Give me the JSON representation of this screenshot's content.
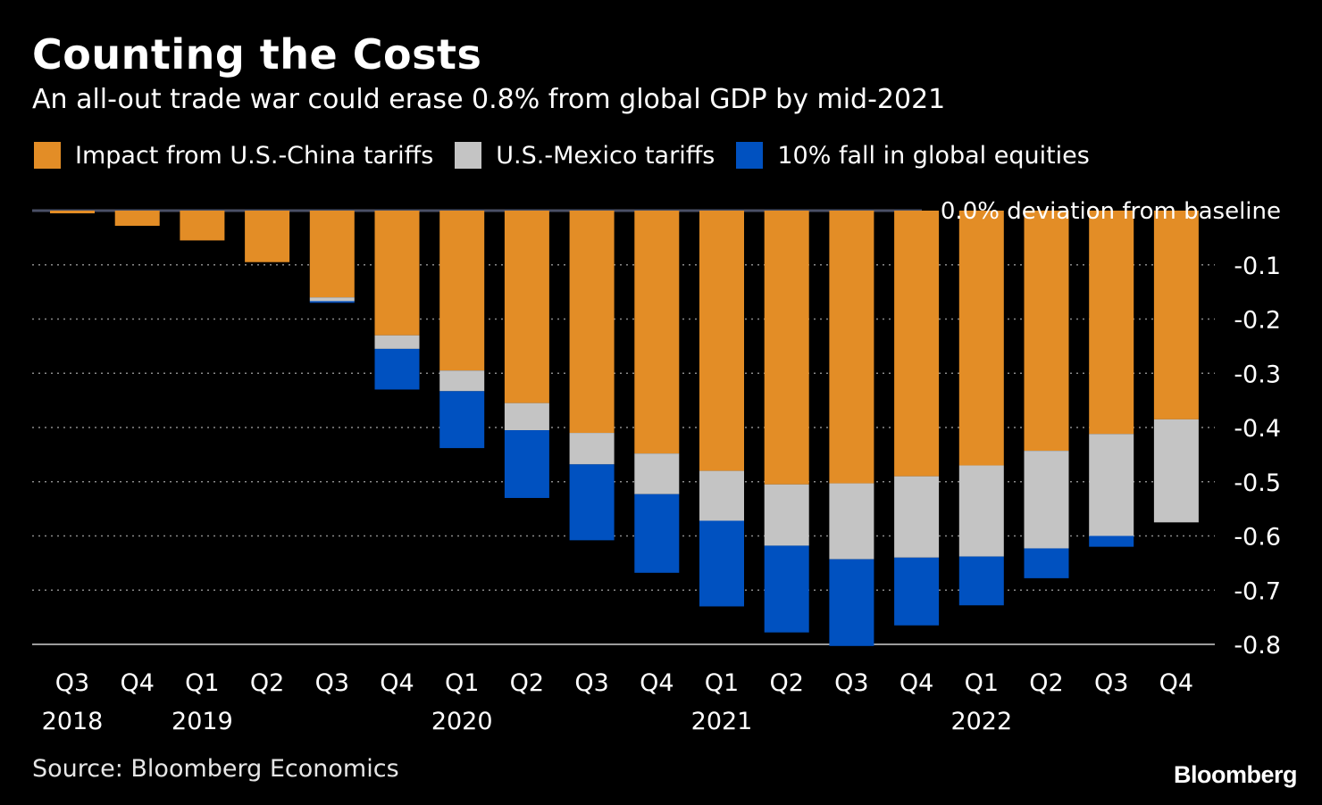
{
  "title": "Counting the Costs",
  "subtitle": "An all-out trade war could erase 0.8% from global GDP by mid-2021",
  "source": "Source: Bloomberg Economics",
  "logo": "Bloomberg",
  "colors": {
    "china": "#e38d26",
    "mexico": "#c4c4c4",
    "equities": "#0051c0",
    "grid": "#8a8a8a",
    "background": "#000000"
  },
  "chart_data": {
    "type": "bar",
    "stacked": true,
    "baseline_label": "0.0% deviation from baseline",
    "categories": [
      "Q3",
      "Q4",
      "Q1",
      "Q2",
      "Q3",
      "Q4",
      "Q1",
      "Q2",
      "Q3",
      "Q4",
      "Q1",
      "Q2",
      "Q3",
      "Q4",
      "Q1",
      "Q2",
      "Q3",
      "Q4"
    ],
    "years": [
      {
        "label": "2018",
        "index": 0
      },
      {
        "label": "2019",
        "index": 2
      },
      {
        "label": "2020",
        "index": 6
      },
      {
        "label": "2021",
        "index": 10
      },
      {
        "label": "2022",
        "index": 14
      }
    ],
    "ylim": [
      -0.8,
      0
    ],
    "yticks": [
      -0.1,
      -0.2,
      -0.3,
      -0.4,
      -0.5,
      -0.6,
      -0.7,
      -0.8
    ],
    "ytick_labels": [
      "-0.1",
      "-0.2",
      "-0.3",
      "-0.4",
      "-0.5",
      "-0.6",
      "-0.7",
      "-0.8"
    ],
    "grid": "horizontal dotted",
    "legend_position": "top-left",
    "series": [
      {
        "name": "Impact from U.S.-China tariffs",
        "color": "#e38d26",
        "values": [
          -0.005,
          -0.028,
          -0.055,
          -0.095,
          -0.16,
          -0.23,
          -0.295,
          -0.355,
          -0.41,
          -0.448,
          -0.48,
          -0.505,
          -0.503,
          -0.49,
          -0.47,
          -0.443,
          -0.412,
          -0.385
        ]
      },
      {
        "name": "U.S.-Mexico tariffs",
        "color": "#c4c4c4",
        "values": [
          0,
          0,
          0,
          0,
          -0.007,
          -0.025,
          -0.038,
          -0.05,
          -0.058,
          -0.075,
          -0.092,
          -0.113,
          -0.14,
          -0.15,
          -0.168,
          -0.18,
          -0.188,
          -0.19
        ]
      },
      {
        "name": "10% fall in global equities",
        "color": "#0051c0",
        "values": [
          0,
          0,
          0,
          0,
          -0.003,
          -0.075,
          -0.105,
          -0.125,
          -0.14,
          -0.145,
          -0.158,
          -0.16,
          -0.16,
          -0.125,
          -0.09,
          -0.055,
          -0.02,
          0
        ]
      }
    ]
  }
}
